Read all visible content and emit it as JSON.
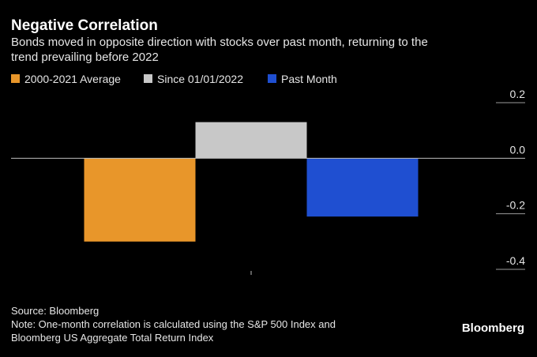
{
  "chart_data": {
    "type": "bar",
    "title": "Negative Correlation",
    "subtitle": [
      "Bonds moved in opposite direction with stocks over past month, returning to the",
      "trend prevailing before 2022"
    ],
    "categories": [
      null
    ],
    "series": [
      {
        "name": "2000-2021 Average",
        "color": "#e8962a",
        "values": [
          -0.3
        ]
      },
      {
        "name": "Since 01/01/2022",
        "color": "#c8c8c8",
        "values": [
          0.13
        ]
      },
      {
        "name": "Past Month",
        "color": "#1f4fd1",
        "values": [
          -0.21
        ]
      }
    ],
    "ylim": [
      -0.4,
      0.2
    ],
    "yticks": [
      0.2,
      {
        "value": 0,
        "label": "0.0"
      },
      -0.2,
      -0.4
    ],
    "y_axis_side": "right",
    "legend": "top-left",
    "source": "Source: Bloomberg",
    "note": [
      "Note: One-month correlation is calculated using the S&P 500 Index and",
      "Bloomberg US Aggregate Total Return Index"
    ],
    "brand": "Bloomberg"
  }
}
